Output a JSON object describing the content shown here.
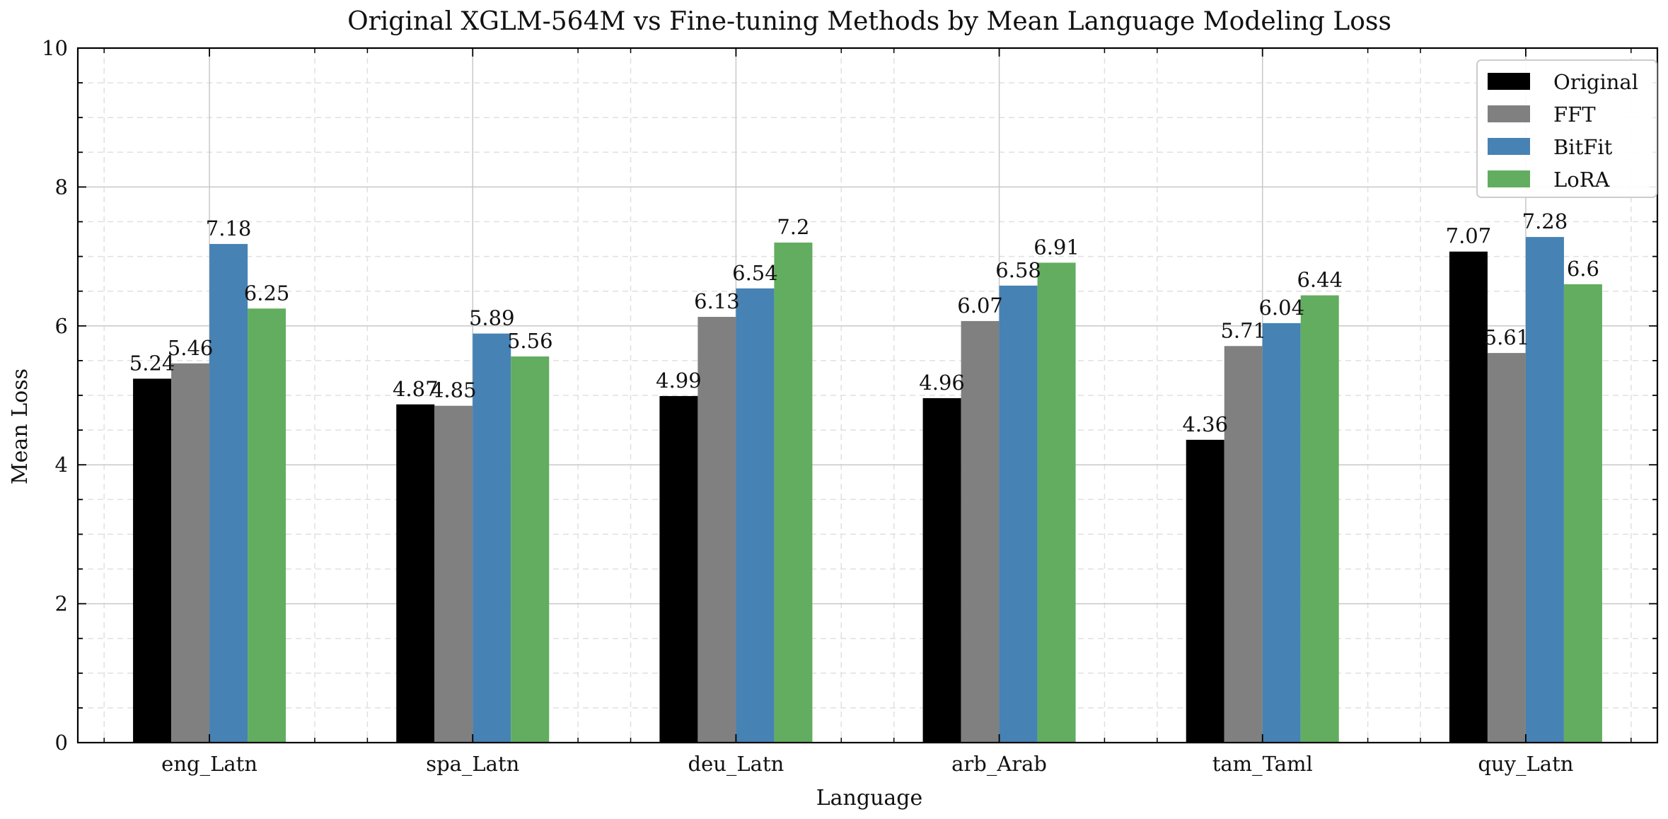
{
  "chart_data": {
    "type": "bar",
    "title": "Original XGLM-564M vs Fine-tuning Methods by Mean Language Modeling Loss",
    "xlabel": "Language",
    "ylabel": "Mean Loss",
    "ylim": [
      0,
      10
    ],
    "yticks": [
      0,
      2,
      4,
      6,
      8,
      10
    ],
    "yticks_minor_step": 0.5,
    "grid": true,
    "legend_position": "top-right",
    "categories": [
      "eng_Latn",
      "spa_Latn",
      "deu_Latn",
      "arb_Arab",
      "tam_Taml",
      "quy_Latn"
    ],
    "series": [
      {
        "name": "Original",
        "color": "#000000",
        "values": [
          5.24,
          4.87,
          4.99,
          4.96,
          4.36,
          7.07
        ]
      },
      {
        "name": "FFT",
        "color": "#808080",
        "values": [
          5.46,
          4.85,
          6.13,
          6.07,
          5.71,
          5.61
        ]
      },
      {
        "name": "BitFit",
        "color": "#4682b4",
        "values": [
          7.18,
          5.89,
          6.54,
          6.58,
          6.04,
          7.28
        ]
      },
      {
        "name": "LoRA",
        "color": "#62ad5f",
        "values": [
          6.25,
          5.56,
          7.2,
          6.91,
          6.44,
          6.6
        ]
      }
    ]
  }
}
